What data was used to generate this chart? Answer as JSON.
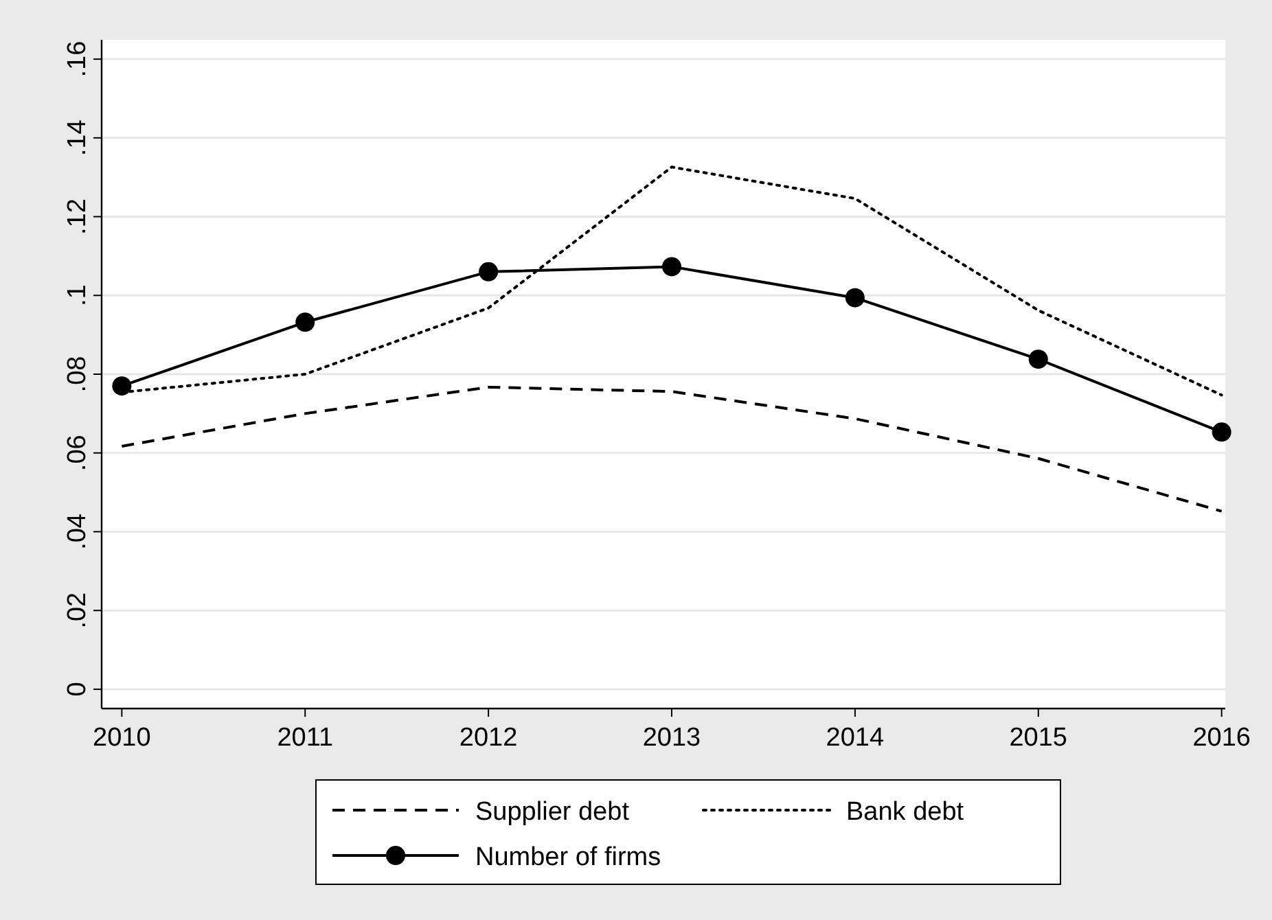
{
  "chart_data": {
    "type": "line",
    "x": [
      2010,
      2011,
      2012,
      2013,
      2014,
      2015,
      2016
    ],
    "xlim": [
      2009.89,
      2016.02
    ],
    "xticks": [
      2010,
      2011,
      2012,
      2013,
      2014,
      2015,
      2016
    ],
    "ylim": [
      -0.0049,
      0.1649
    ],
    "yticks": [
      {
        "value": 0,
        "label": "0"
      },
      {
        "value": 0.02,
        "label": ".02"
      },
      {
        "value": 0.04,
        "label": ".04"
      },
      {
        "value": 0.06,
        "label": ".06"
      },
      {
        "value": 0.08,
        "label": ".08"
      },
      {
        "value": 0.1,
        "label": ".1"
      },
      {
        "value": 0.12,
        "label": ".12"
      },
      {
        "value": 0.14,
        "label": ".14"
      },
      {
        "value": 0.16,
        "label": ".16"
      }
    ],
    "grid": "y",
    "legend": "bottom",
    "series": [
      {
        "name": "Supplier debt",
        "color": "#000000",
        "line_style": "dashed",
        "marker": "none",
        "values": [
          0.0617,
          0.07,
          0.0767,
          0.0756,
          0.0687,
          0.0586,
          0.0452
        ]
      },
      {
        "name": "Bank debt",
        "color": "#000000",
        "line_style": "dotted",
        "marker": "none",
        "values": [
          0.0754,
          0.08,
          0.0968,
          0.1326,
          0.1246,
          0.0962,
          0.0747
        ]
      },
      {
        "name": "Number of firms",
        "color": "#000000",
        "line_style": "solid",
        "marker": "circle",
        "values": [
          0.077,
          0.0932,
          0.106,
          0.1073,
          0.0994,
          0.0838,
          0.0653
        ]
      }
    ]
  }
}
